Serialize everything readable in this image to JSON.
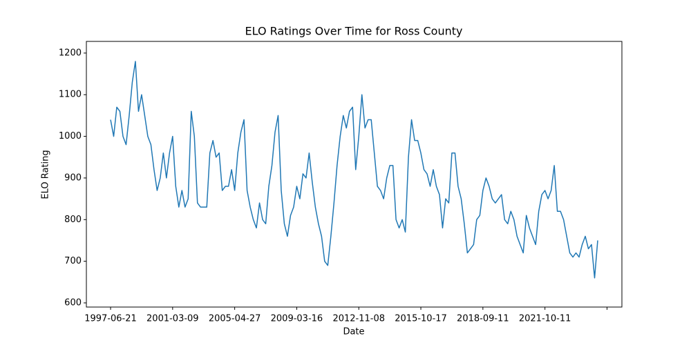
{
  "chart_data": {
    "type": "line",
    "title": "ELO Ratings Over Time for Ross County",
    "x_label": "Date",
    "y_label": "ELO Rating",
    "xlim": [
      -7.8,
      164.8
    ],
    "xticks": [
      {
        "value": 0,
        "label": "1997-06-21"
      },
      {
        "value": 20,
        "label": "2001-03-09"
      },
      {
        "value": 40,
        "label": "2005-04-27"
      },
      {
        "value": 60,
        "label": "2009-03-16"
      },
      {
        "value": 80,
        "label": "2012-11-08"
      },
      {
        "value": 100,
        "label": "2015-10-17"
      },
      {
        "value": 120,
        "label": "2018-09-11"
      },
      {
        "value": 140,
        "label": "2021-10-11"
      },
      {
        "value": 160,
        "label": null
      }
    ],
    "ylim": [
      590,
      1228
    ],
    "yticks": [
      600,
      700,
      800,
      900,
      1000,
      1100,
      1200
    ],
    "series": [
      {
        "color": "#1f77b4",
        "values": [
          1040,
          1000,
          1070,
          1060,
          1000,
          980,
          1050,
          1130,
          1180,
          1060,
          1100,
          1050,
          1000,
          980,
          920,
          870,
          900,
          960,
          900,
          960,
          1000,
          880,
          830,
          870,
          830,
          850,
          1060,
          1000,
          840,
          830,
          830,
          830,
          960,
          990,
          950,
          960,
          870,
          880,
          880,
          920,
          870,
          960,
          1010,
          1040,
          870,
          830,
          800,
          780,
          840,
          800,
          790,
          880,
          930,
          1010,
          1050,
          870,
          790,
          760,
          810,
          830,
          880,
          850,
          910,
          900,
          960,
          890,
          830,
          790,
          760,
          700,
          690,
          760,
          840,
          930,
          1000,
          1050,
          1020,
          1060,
          1070,
          920,
          1000,
          1100,
          1020,
          1040,
          1040,
          960,
          880,
          870,
          850,
          900,
          930,
          930,
          800,
          780,
          800,
          770,
          950,
          1040,
          990,
          990,
          960,
          920,
          910,
          880,
          920,
          880,
          860,
          780,
          850,
          840,
          960,
          960,
          880,
          850,
          790,
          720,
          730,
          740,
          800,
          810,
          870,
          900,
          880,
          850,
          840,
          850,
          860,
          800,
          790,
          820,
          800,
          760,
          740,
          720,
          810,
          780,
          760,
          740,
          820,
          860,
          870,
          850,
          870,
          930,
          820,
          820,
          800,
          760,
          720,
          710,
          720,
          710,
          740,
          760,
          730,
          740,
          660,
          750
        ]
      }
    ]
  }
}
